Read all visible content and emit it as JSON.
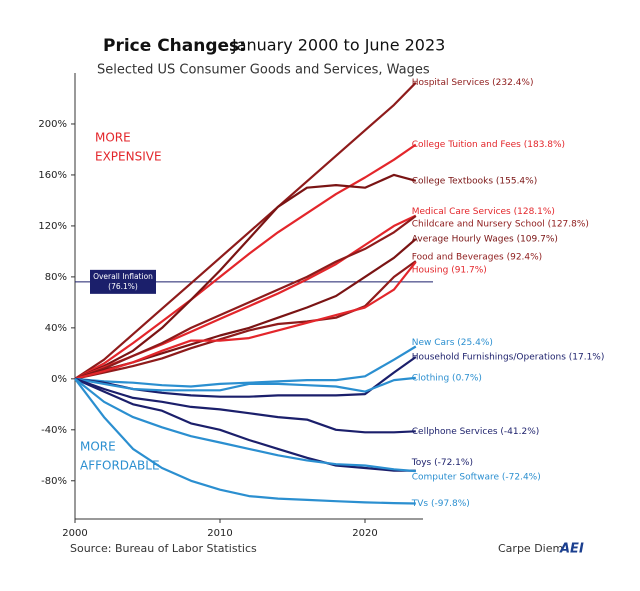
{
  "chart_data": {
    "type": "line",
    "title": "Price Changes:",
    "title_rest": "January 2000 to June 2023",
    "subtitle": "Selected US Consumer Goods and Services, Wages",
    "annotations": {
      "expensive": [
        "MORE",
        "EXPENSIVE"
      ],
      "affordable": [
        "MORE",
        "AFFORDABLE"
      ],
      "inflation": [
        "Overall Inflation",
        "(76.1%)"
      ]
    },
    "inflation_value": 76.1,
    "source": "Source: Bureau of Labor Statistics",
    "brand": "Carpe Diem",
    "brand_logo": "AEI",
    "x": [
      2000,
      2002,
      2004,
      2006,
      2008,
      2010,
      2012,
      2014,
      2016,
      2018,
      2020,
      2022,
      2023.5
    ],
    "xlim": [
      2000,
      2024
    ],
    "xticks": [
      2000,
      2010,
      2020
    ],
    "ylim": [
      -110,
      240
    ],
    "yticks": [
      {
        "value": -80,
        "label": "-80%"
      },
      {
        "value": -40,
        "label": "-40%"
      },
      {
        "value": 0,
        "label": "0%"
      },
      {
        "value": 40,
        "label": "40%"
      },
      {
        "value": 80,
        "label": "80%"
      },
      {
        "value": 120,
        "label": "120%"
      },
      {
        "value": 160,
        "label": "160%"
      },
      {
        "value": 200,
        "label": "200%"
      }
    ],
    "grid": false,
    "series": [
      {
        "name": "Hospital Services (232.4%)",
        "color": "#8e1b1b",
        "values": [
          0,
          15,
          35,
          55,
          75,
          95,
          115,
          135,
          155,
          175,
          195,
          215,
          232.4
        ]
      },
      {
        "name": "College Tuition and Fees (183.8%)",
        "color": "#e3262b",
        "values": [
          0,
          12,
          28,
          45,
          62,
          80,
          98,
          115,
          130,
          145,
          158,
          172,
          183.8
        ]
      },
      {
        "name": "College Textbooks (155.4%)",
        "color": "#7a1414",
        "values": [
          0,
          10,
          22,
          40,
          62,
          85,
          110,
          135,
          150,
          152,
          150,
          160,
          155.4
        ]
      },
      {
        "name": "Medical Care Services (128.1%)",
        "color": "#e3262b",
        "values": [
          0,
          9,
          18,
          27,
          37,
          47,
          57,
          67,
          78,
          90,
          105,
          120,
          128.1
        ]
      },
      {
        "name": "Childcare and Nursery School (127.8%)",
        "color": "#8e1b1b",
        "values": [
          0,
          8,
          18,
          28,
          40,
          50,
          60,
          70,
          80,
          92,
          102,
          115,
          127.8
        ]
      },
      {
        "name": "Average Hourly Wages (109.7%)",
        "color": "#7a1414",
        "values": [
          0,
          7,
          13,
          20,
          27,
          34,
          40,
          48,
          56,
          65,
          80,
          95,
          109.7
        ]
      },
      {
        "name": "Food and Beverages (92.4%)",
        "color": "#8e1b1b",
        "values": [
          0,
          5,
          10,
          16,
          24,
          31,
          38,
          43,
          45,
          48,
          57,
          80,
          92.4
        ]
      },
      {
        "name": "Housing (91.7%)",
        "color": "#e3262b",
        "values": [
          0,
          6,
          13,
          22,
          30,
          30,
          32,
          38,
          44,
          50,
          56,
          70,
          91.7
        ]
      },
      {
        "name": "New Cars (25.4%)",
        "color": "#2b8fd0",
        "values": [
          0,
          -2,
          -3,
          -5,
          -6,
          -4,
          -3,
          -2,
          -1,
          -1,
          2,
          15,
          25.4
        ]
      },
      {
        "name": "Household Furnishings/Operations (17.1%)",
        "color": "#1b1f6b",
        "values": [
          0,
          -3,
          -8,
          -11,
          -13,
          -14,
          -14,
          -13,
          -13,
          -13,
          -12,
          5,
          17.1
        ]
      },
      {
        "name": "Clothing (0.7%)",
        "color": "#2b8fd0",
        "values": [
          0,
          -4,
          -8,
          -9,
          -9,
          -9,
          -4,
          -4,
          -5,
          -6,
          -10,
          -1,
          0.7
        ]
      },
      {
        "name": "Cellphone Services (-41.2%)",
        "color": "#1b1f6b",
        "values": [
          0,
          -8,
          -15,
          -18,
          -22,
          -24,
          -27,
          -30,
          -32,
          -40,
          -42,
          -42,
          -41.2
        ]
      },
      {
        "name": "Toys (-72.1%)",
        "color": "#1b1f6b",
        "values": [
          0,
          -10,
          -20,
          -25,
          -35,
          -40,
          -48,
          -55,
          -62,
          -68,
          -70,
          -72,
          -72.1
        ]
      },
      {
        "name": "Computer Software (-72.4%)",
        "color": "#2b8fd0",
        "values": [
          0,
          -18,
          -30,
          -38,
          -45,
          -50,
          -55,
          -60,
          -64,
          -67,
          -68,
          -71,
          -72.4
        ]
      },
      {
        "name": "TVs (-97.8%)",
        "color": "#2b8fd0",
        "values": [
          0,
          -30,
          -55,
          -70,
          -80,
          -87,
          -92,
          -94,
          -95,
          -96,
          -97,
          -97.5,
          -97.8
        ]
      }
    ]
  }
}
